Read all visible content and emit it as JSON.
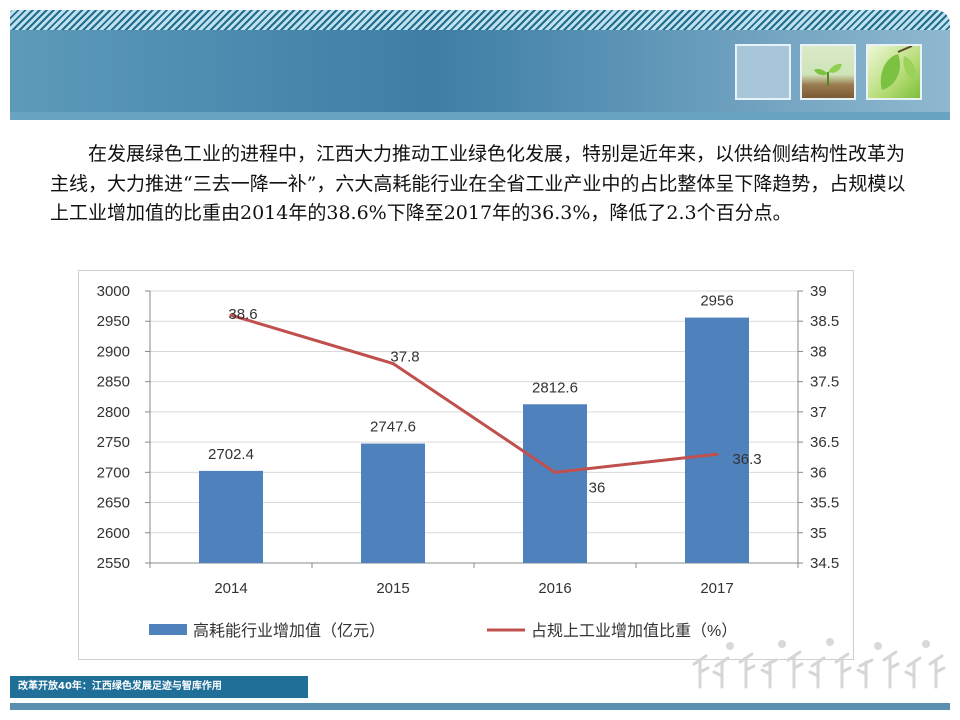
{
  "body_text": "在发展绿色工业的进程中，江西大力推动工业绿色化发展，特别是近年来，以供给侧结构性改革为主线，大力推进“三去一降一补”，六大高耗能行业在全省工业产业中的占比整体呈下降趋势，占规模以上工业增加值的比重由2014年的38.6%下降至2017年的36.3%，降低了2.3个百分点。",
  "footer": {
    "label": "改革开放40年：江西绿色发展足迹与智库作用"
  },
  "chart_data": {
    "type": "bar",
    "categories": [
      "2014",
      "2015",
      "2016",
      "2017"
    ],
    "series": [
      {
        "name": "高耗能行业增加值（亿元）",
        "type": "bar",
        "axis": "left",
        "values": [
          2702.4,
          2747.6,
          2812.6,
          2956
        ],
        "labels": [
          "2702.4",
          "2747.6",
          "2812.6",
          "2956"
        ],
        "color": "#4f81bd"
      },
      {
        "name": "占规上工业增加值比重（%）",
        "type": "line",
        "axis": "right",
        "values": [
          38.6,
          37.8,
          36,
          36.3
        ],
        "labels": [
          "38.6",
          "37.8",
          "36",
          "36.3"
        ],
        "color": "#c0504d"
      }
    ],
    "y_left": {
      "min": 2550,
      "max": 3000,
      "step": 50,
      "ticks": [
        "3000",
        "2950",
        "2900",
        "2850",
        "2800",
        "2750",
        "2700",
        "2650",
        "2600",
        "2550"
      ]
    },
    "y_right": {
      "min": 34.5,
      "max": 39,
      "step": 0.5,
      "ticks": [
        "39",
        "38.5",
        "38",
        "37.5",
        "37",
        "36.5",
        "36",
        "35.5",
        "35",
        "34.5"
      ]
    },
    "grid": true,
    "legend": "bottom"
  }
}
